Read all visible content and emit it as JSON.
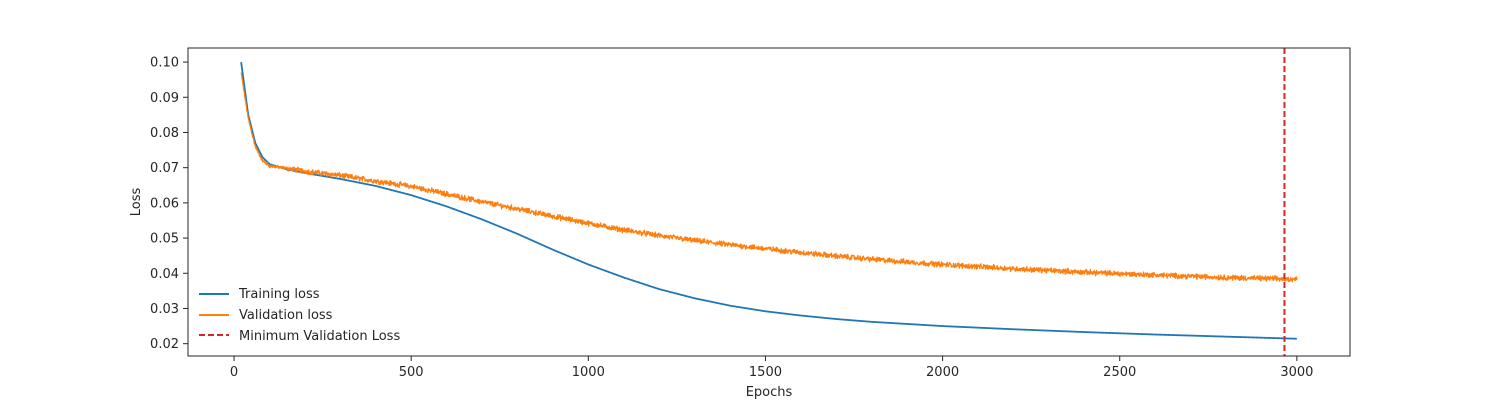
{
  "chart_data": {
    "type": "line",
    "title": "",
    "xlabel": "Epochs",
    "ylabel": "Loss",
    "xlim": [
      -130,
      3150
    ],
    "ylim": [
      0.0165,
      0.104
    ],
    "xticks": [
      0,
      500,
      1000,
      1500,
      2000,
      2500,
      3000
    ],
    "yticks": [
      0.02,
      0.03,
      0.04,
      0.05,
      0.06,
      0.07,
      0.08,
      0.09,
      0.1
    ],
    "ytick_labels": [
      "0.02",
      "0.03",
      "0.04",
      "0.05",
      "0.06",
      "0.07",
      "0.08",
      "0.09",
      "0.10"
    ],
    "grid": false,
    "legend_position": "lower-left",
    "series": [
      {
        "name": "Training loss",
        "color": "#1f77b4",
        "style": "solid",
        "x": [
          20,
          40,
          60,
          80,
          100,
          150,
          200,
          300,
          400,
          500,
          600,
          700,
          800,
          900,
          1000,
          1100,
          1200,
          1300,
          1400,
          1500,
          1600,
          1700,
          1800,
          1900,
          2000,
          2200,
          2400,
          2600,
          2800,
          3000
        ],
        "y": [
          0.1,
          0.085,
          0.077,
          0.073,
          0.071,
          0.0695,
          0.0685,
          0.0668,
          0.0648,
          0.0622,
          0.059,
          0.0553,
          0.0512,
          0.0467,
          0.0425,
          0.0388,
          0.0355,
          0.0329,
          0.0308,
          0.0292,
          0.028,
          0.027,
          0.0262,
          0.0256,
          0.025,
          0.0241,
          0.0233,
          0.0226,
          0.022,
          0.0214
        ]
      },
      {
        "name": "Validation loss",
        "color": "#ff7f0e",
        "style": "solid",
        "noise": 0.0006,
        "x": [
          20,
          40,
          60,
          80,
          100,
          150,
          200,
          300,
          400,
          500,
          600,
          700,
          800,
          900,
          1000,
          1100,
          1200,
          1300,
          1400,
          1500,
          1600,
          1700,
          1800,
          1900,
          2000,
          2200,
          2400,
          2600,
          2800,
          3000
        ],
        "y": [
          0.097,
          0.084,
          0.076,
          0.072,
          0.0705,
          0.0698,
          0.069,
          0.0678,
          0.0662,
          0.0647,
          0.0625,
          0.0603,
          0.0583,
          0.0562,
          0.0542,
          0.0523,
          0.0507,
          0.0493,
          0.0481,
          0.047,
          0.0459,
          0.0449,
          0.044,
          0.0432,
          0.0425,
          0.0413,
          0.0403,
          0.0395,
          0.0388,
          0.0383
        ]
      }
    ],
    "vline": {
      "name": "Minimum Validation Loss",
      "x": 2965,
      "color": "#d62728",
      "style": "dashed"
    }
  }
}
